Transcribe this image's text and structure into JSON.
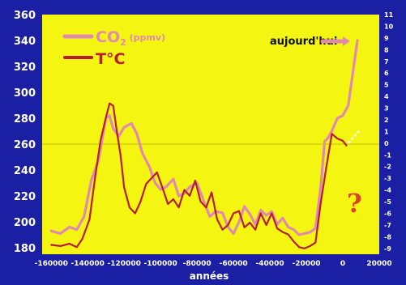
{
  "chart_data": {
    "type": "line",
    "xlabel": "années",
    "xlim": [
      -165000,
      20000
    ],
    "x_ticks": [
      -160000,
      -140000,
      -120000,
      -100000,
      -80000,
      -60000,
      -40000,
      -20000,
      0,
      20000
    ],
    "x_tick_labels": [
      "-160000",
      "-140000",
      "-120000",
      "-100000",
      "-80000",
      "-60000",
      "-40000",
      "-20000",
      "0",
      "20000"
    ],
    "y_left": {
      "range": [
        175,
        360
      ],
      "ticks": [
        180,
        200,
        220,
        240,
        260,
        280,
        300,
        320,
        340,
        360
      ],
      "tick_labels": [
        "180",
        "200",
        "220",
        "240",
        "260",
        "280",
        "300",
        "320",
        "340",
        "360"
      ]
    },
    "y_right": {
      "range": [
        -9.5,
        11
      ],
      "ticks": [
        -9,
        -8,
        -7,
        -6,
        -5,
        -4,
        -3,
        -2,
        -1,
        0,
        1,
        2,
        3,
        4,
        5,
        6,
        7,
        8,
        9,
        10,
        11
      ],
      "tick_labels": [
        "-9",
        "-8",
        "-7",
        "-6",
        "-5",
        "-4",
        "-3",
        "-2",
        "-1",
        "0",
        "1",
        "2",
        "3",
        "4",
        "5",
        "6",
        "7",
        "8",
        "9",
        "10",
        "11"
      ]
    },
    "grid": false,
    "legend_placement": "top-left",
    "background_color": "#f5f512",
    "frame_color": "#1b1fa3",
    "reference_line": {
      "axis": "y_left",
      "value": 260
    },
    "series": [
      {
        "name": "CO2 (ppmv)",
        "name_main": "CO",
        "name_sub": "2",
        "name_unit": " (ppmv)",
        "color": "#e08ab0",
        "axis": "y_left",
        "x": [
          -160000,
          -155000,
          -150000,
          -146000,
          -142000,
          -138000,
          -134000,
          -130000,
          -128000,
          -126000,
          -123000,
          -120000,
          -116000,
          -113000,
          -110000,
          -106000,
          -103000,
          -100000,
          -97000,
          -93000,
          -90000,
          -87000,
          -84000,
          -80000,
          -76000,
          -73000,
          -70000,
          -66000,
          -63000,
          -60000,
          -57000,
          -54000,
          -51000,
          -48000,
          -45000,
          -42000,
          -39000,
          -36000,
          -33000,
          -30000,
          -27000,
          -24000,
          -21000,
          -18000,
          -15000,
          -12000,
          -10000,
          -8000,
          -6000,
          -3000,
          0,
          3000,
          6000,
          8000
        ],
        "y": [
          193,
          191,
          196,
          194,
          204,
          232,
          248,
          280,
          282,
          272,
          266,
          273,
          276,
          268,
          253,
          242,
          230,
          225,
          227,
          233,
          220,
          222,
          227,
          230,
          215,
          204,
          208,
          207,
          196,
          191,
          200,
          212,
          206,
          198,
          209,
          205,
          208,
          198,
          203,
          196,
          194,
          190,
          191,
          192,
          195,
          228,
          262,
          265,
          270,
          280,
          282,
          290,
          320,
          340
        ]
      },
      {
        "name": "T°C",
        "color": "#b81c2c",
        "axis": "y_right",
        "x": [
          -160000,
          -155000,
          -150000,
          -146000,
          -143000,
          -139000,
          -136000,
          -133000,
          -130000,
          -128000,
          -126000,
          -124000,
          -122000,
          -120000,
          -117000,
          -114000,
          -111000,
          -108000,
          -105000,
          -102000,
          -99000,
          -96000,
          -93000,
          -90000,
          -87000,
          -84000,
          -81000,
          -78000,
          -75000,
          -72000,
          -69000,
          -66000,
          -63000,
          -60000,
          -57000,
          -54000,
          -51000,
          -48000,
          -45000,
          -42000,
          -39000,
          -36000,
          -33000,
          -30000,
          -27000,
          -24000,
          -21000,
          -18000,
          -15000,
          -12000,
          -9000,
          -6000,
          -3000,
          0,
          2000
        ],
        "y": [
          -8.7,
          -8.8,
          -8.6,
          -8.9,
          -8.2,
          -6.5,
          -3.0,
          0.2,
          2.2,
          3.4,
          3.2,
          1.0,
          -1.0,
          -3.8,
          -5.5,
          -6.0,
          -5.0,
          -3.5,
          -3.0,
          -2.5,
          -3.8,
          -5.2,
          -4.8,
          -5.5,
          -4.0,
          -4.5,
          -3.2,
          -5.0,
          -5.5,
          -4.2,
          -6.5,
          -7.4,
          -7.0,
          -6.0,
          -5.8,
          -7.2,
          -6.8,
          -7.4,
          -6.0,
          -7.0,
          -6.0,
          -7.3,
          -7.6,
          -7.8,
          -8.4,
          -8.9,
          -9.0,
          -8.8,
          -8.5,
          -5.0,
          -2.0,
          0.8,
          0.4,
          0.2,
          -0.2
        ]
      }
    ],
    "annotations": {
      "today_label": "aujourd'hui",
      "question_mark": "?"
    }
  }
}
